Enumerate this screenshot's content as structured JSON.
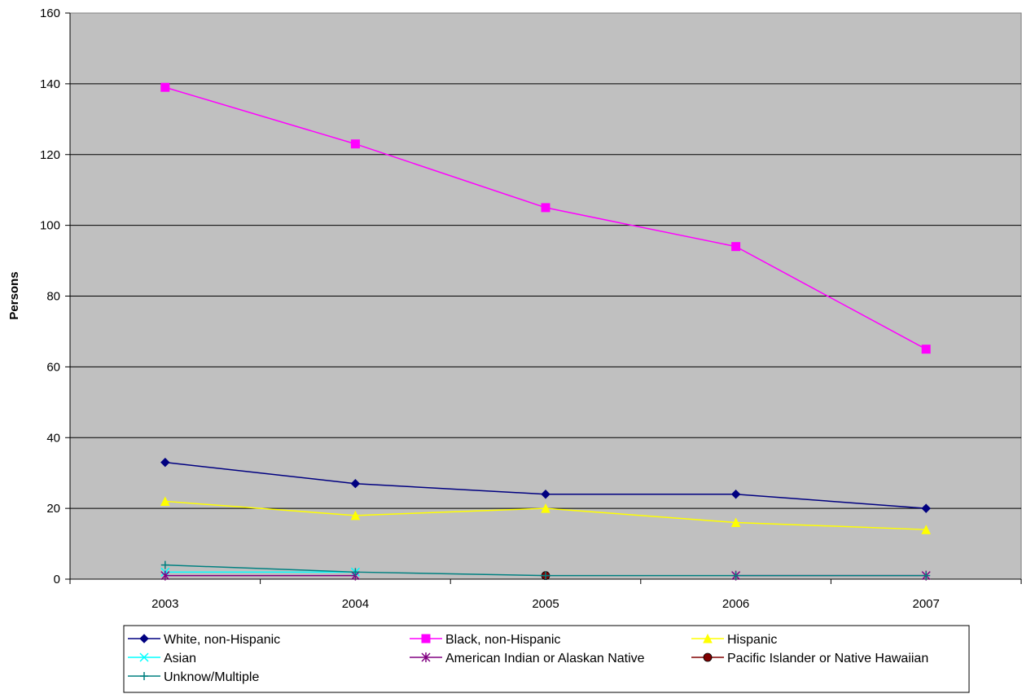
{
  "chart_data": {
    "type": "line",
    "title": "",
    "xlabel": "",
    "ylabel": "Persons",
    "categories": [
      "2003",
      "2004",
      "2005",
      "2006",
      "2007"
    ],
    "ylim": [
      0,
      160
    ],
    "yticks": [
      0,
      20,
      40,
      60,
      80,
      100,
      120,
      140,
      160
    ],
    "grid": "horizontal",
    "plot_background": "#c0c0c0",
    "legend_position": "bottom",
    "series": [
      {
        "name": "White, non-Hispanic",
        "values": [
          33,
          27,
          24,
          24,
          20
        ],
        "color": "#000080",
        "marker": "diamond"
      },
      {
        "name": "Black, non-Hispanic",
        "values": [
          139,
          123,
          105,
          94,
          65
        ],
        "color": "#ff00ff",
        "marker": "square"
      },
      {
        "name": "Hispanic",
        "values": [
          22,
          18,
          20,
          16,
          14
        ],
        "color": "#ffff00",
        "marker": "triangle"
      },
      {
        "name": "Asian",
        "values": [
          2,
          2,
          null,
          null,
          null
        ],
        "color": "#00ffff",
        "marker": "x"
      },
      {
        "name": "American Indian or Alaskan Native",
        "values": [
          1,
          1,
          null,
          1,
          1
        ],
        "color": "#800080",
        "marker": "star"
      },
      {
        "name": "Pacific Islander or Native Hawaiian",
        "values": [
          null,
          null,
          1,
          null,
          null
        ],
        "color": "#800000",
        "marker": "circle"
      },
      {
        "name": "Unknow/Multiple",
        "values": [
          4,
          2,
          1,
          1,
          1
        ],
        "color": "#008080",
        "marker": "plus"
      }
    ]
  }
}
